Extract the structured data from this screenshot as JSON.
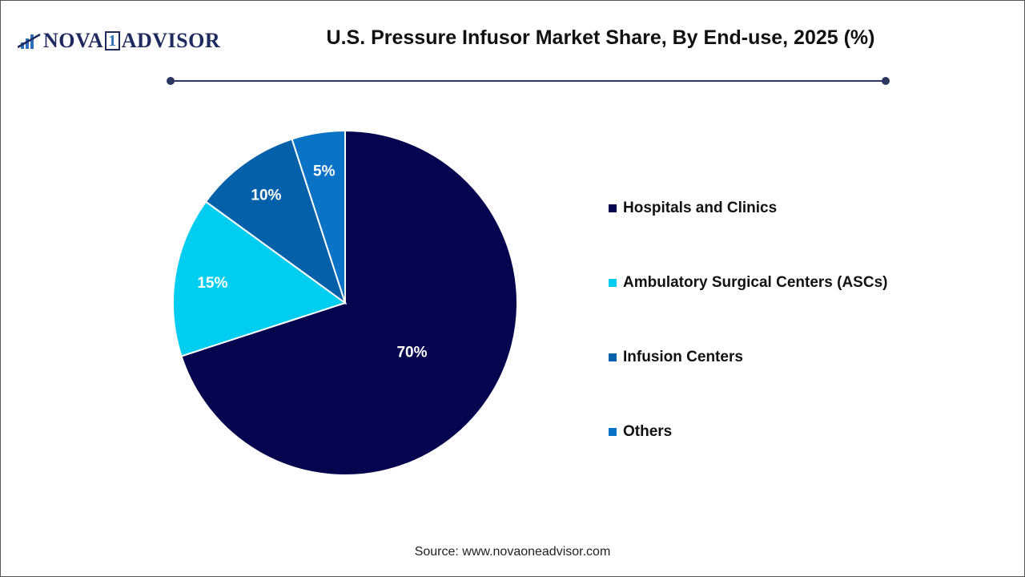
{
  "logo": {
    "text_left": "NOVA",
    "text_mid": "1",
    "text_right": "ADVISOR"
  },
  "chart_data": {
    "type": "pie",
    "title": "U.S. Pressure Infusor Market Share, By End-use, 2025 (%)",
    "categories": [
      "Hospitals and Clinics",
      "Ambulatory Surgical Centers (ASCs)",
      "Infusion Centers",
      "Others"
    ],
    "values": [
      70,
      15,
      10,
      5
    ],
    "labels": [
      "70%",
      "15%",
      "10%",
      "5%"
    ],
    "colors": [
      "#04044f",
      "#00cdf0",
      "#0460a8",
      "#0b73c6"
    ],
    "start_angle": "top",
    "direction": "clockwise",
    "legend_position": "right"
  },
  "source": "Source: www.novaoneadvisor.com"
}
